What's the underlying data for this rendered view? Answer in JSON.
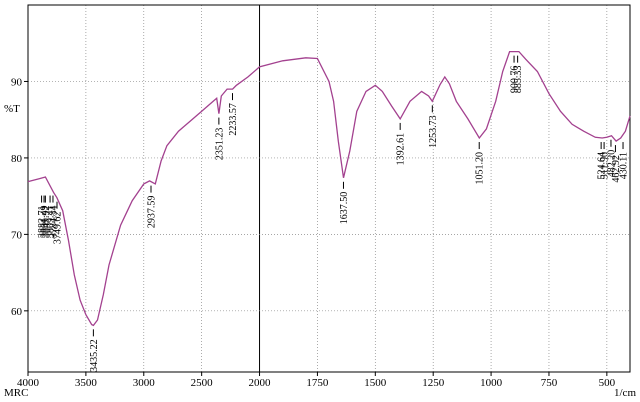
{
  "chart_data": {
    "type": "line",
    "y_label": "%T",
    "x_label": "1/cm",
    "corner_label": "MRC",
    "xlim": [
      4000,
      400
    ],
    "ylim": [
      52,
      100
    ],
    "xticks": [
      4000,
      3500,
      3000,
      2500,
      2000,
      1750,
      1500,
      1250,
      1000,
      750,
      500
    ],
    "yticks": [
      60,
      70,
      80,
      90
    ],
    "grid": true,
    "series": [
      {
        "color": "#a3418f",
        "x": [
          4000,
          3900,
          3850,
          3780,
          3750,
          3700,
          3650,
          3600,
          3550,
          3500,
          3450,
          3435,
          3400,
          3350,
          3300,
          3200,
          3100,
          3000,
          2950,
          2900,
          2850,
          2800,
          2700,
          2600,
          2500,
          2400,
          2370,
          2351,
          2330,
          2280,
          2233,
          2200,
          2100,
          2000,
          1900,
          1800,
          1750,
          1700,
          1680,
          1660,
          1637.5,
          1610,
          1580,
          1540,
          1500,
          1470,
          1430,
          1392.6,
          1350,
          1300,
          1270,
          1253.7,
          1220,
          1200,
          1180,
          1150,
          1100,
          1051,
          1020,
          980,
          950,
          920,
          900,
          880,
          850,
          800,
          750,
          700,
          650,
          600,
          550,
          520,
          500,
          480,
          460,
          440,
          420,
          400
        ],
        "values": [
          76.9,
          77.3,
          77.5,
          75.5,
          74.8,
          73.1,
          69.2,
          64.7,
          61.4,
          59.5,
          58.2,
          58.1,
          58.8,
          62.1,
          66,
          71.2,
          74.4,
          76.6,
          77,
          76.6,
          79.6,
          81.6,
          83.5,
          84.8,
          86.1,
          87.4,
          87.8,
          85.8,
          88.1,
          89,
          89,
          89.5,
          90.6,
          91.9,
          92.7,
          93.1,
          93,
          90,
          87.4,
          82.2,
          77.4,
          80.9,
          86.1,
          88.7,
          89.5,
          88.7,
          86.8,
          85.1,
          87.4,
          88.7,
          88.1,
          87.4,
          89.6,
          90.6,
          89.7,
          87.4,
          85.1,
          82.6,
          83.8,
          87.4,
          91.3,
          93.9,
          93.9,
          93.9,
          92.9,
          91.3,
          88.4,
          86.1,
          84.4,
          83.5,
          82.7,
          82.6,
          82.7,
          82.9,
          82.2,
          82.6,
          83.5,
          85.5
        ]
      }
    ],
    "peaks": [
      {
        "x": 3882.71,
        "y": 75.6,
        "label": "3882.71"
      },
      {
        "x": 3861.49,
        "y": 75.6,
        "label": "3861.49"
      },
      {
        "x": 3849.92,
        "y": 75.6,
        "label": "3849.92"
      },
      {
        "x": 3809.41,
        "y": 75.6,
        "label": "3809.41"
      },
      {
        "x": 3784.34,
        "y": 75.6,
        "label": "3784.34"
      },
      {
        "x": 3749.62,
        "y": 74.8,
        "label": "3749.62"
      },
      {
        "x": 3435.22,
        "y": 58.1,
        "label": "3435.22"
      },
      {
        "x": 2937.59,
        "y": 76.9,
        "label": "2937.59"
      },
      {
        "x": 2351.23,
        "y": 85.8,
        "label": "2351.23"
      },
      {
        "x": 2233.57,
        "y": 89,
        "label": "2233.57"
      },
      {
        "x": 1637.5,
        "y": 77.4,
        "label": "1637.50"
      },
      {
        "x": 1392.61,
        "y": 85.1,
        "label": "1392.61"
      },
      {
        "x": 1253.73,
        "y": 87.4,
        "label": "1253.73"
      },
      {
        "x": 1051.2,
        "y": 82.6,
        "label": "1051.20"
      },
      {
        "x": 900.76,
        "y": 93.9,
        "label": "900.76"
      },
      {
        "x": 885.33,
        "y": 93.9,
        "label": "885.33"
      },
      {
        "x": 524.64,
        "y": 82.6,
        "label": "524.64"
      },
      {
        "x": 511.9,
        "y": 82.6,
        "label": "511.90"
      },
      {
        "x": 482.2,
        "y": 82.9,
        "label": "482.20"
      },
      {
        "x": 462.92,
        "y": 82.2,
        "label": "462.92"
      },
      {
        "x": 430.11,
        "y": 82.6,
        "label": "430.11"
      }
    ]
  }
}
